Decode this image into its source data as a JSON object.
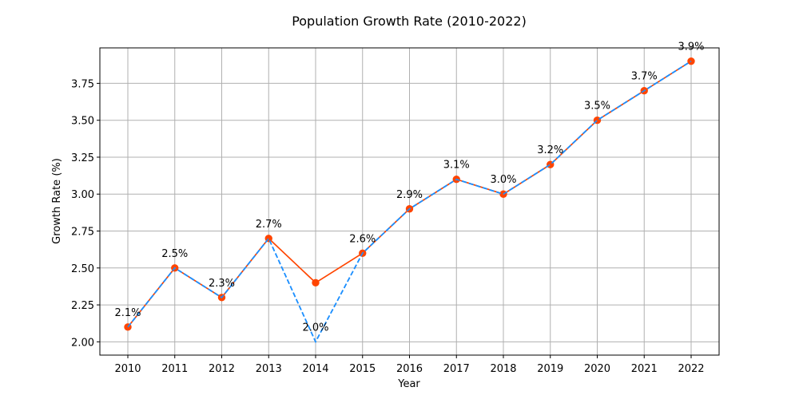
{
  "chart_data": {
    "type": "line",
    "title": "Population Growth Rate (2010-2022)",
    "xlabel": "Year",
    "ylabel": "Growth Rate (%)",
    "categories": [
      "2010",
      "2011",
      "2012",
      "2013",
      "2014",
      "2015",
      "2016",
      "2017",
      "2018",
      "2019",
      "2020",
      "2021",
      "2022"
    ],
    "series": [
      {
        "style": "solid",
        "color": "#ff4500",
        "markers": true,
        "values": [
          2.1,
          2.5,
          2.3,
          2.7,
          2.4,
          2.6,
          2.9,
          3.1,
          3.0,
          3.2,
          3.5,
          3.7,
          3.9
        ]
      },
      {
        "style": "dashed",
        "color": "#1e90ff",
        "markers": false,
        "values": [
          2.1,
          2.5,
          2.3,
          2.7,
          2.0,
          2.6,
          2.9,
          3.1,
          3.0,
          3.2,
          3.5,
          3.7,
          3.9
        ]
      }
    ],
    "data_labels": [
      "2.1%",
      "2.5%",
      "2.3%",
      "2.7%",
      "2.0%",
      "2.6%",
      "2.9%",
      "3.1%",
      "3.0%",
      "3.2%",
      "3.5%",
      "3.7%",
      "3.9%"
    ],
    "y_ticks": [
      "2.00",
      "2.25",
      "2.50",
      "2.75",
      "3.00",
      "3.25",
      "3.50",
      "3.75"
    ],
    "ylim": [
      1.91,
      3.99
    ],
    "grid": true,
    "legend": "none"
  }
}
